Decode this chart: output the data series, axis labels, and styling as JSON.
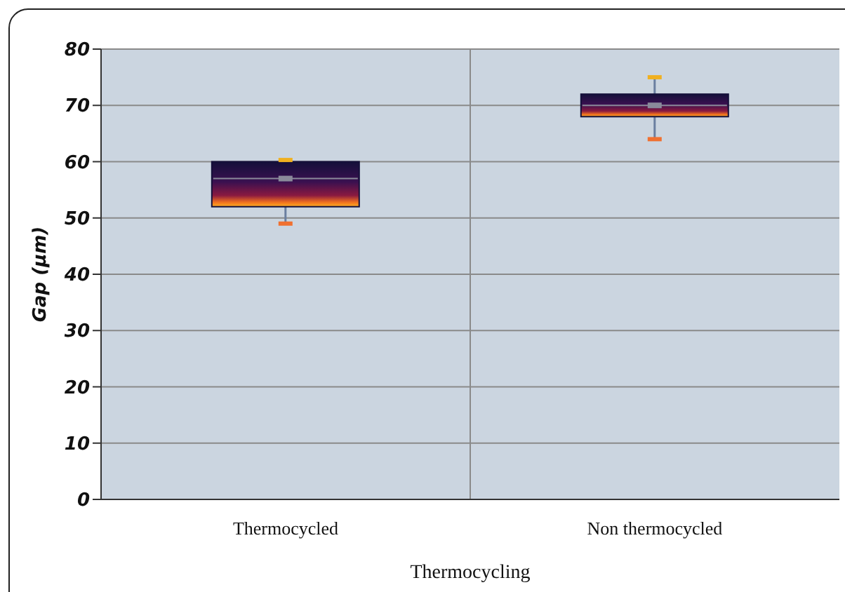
{
  "chart_data": {
    "type": "box",
    "xlabel": "Thermocycling",
    "ylabel": "Gap (µm)",
    "categories": [
      "Thermocycled",
      "Non thermocycled"
    ],
    "boxes": [
      {
        "low": 49,
        "q1": 52,
        "median": 57,
        "mean": 57,
        "q3": 60,
        "high": 60.3
      },
      {
        "low": 64,
        "q1": 68,
        "median": 70,
        "mean": 70,
        "q3": 72,
        "high": 75
      }
    ],
    "color": "#14103a",
    "ylim": [
      0,
      80
    ],
    "yticks": [
      0,
      10,
      20,
      30,
      40,
      50,
      60,
      70,
      80
    ],
    "grid": true
  }
}
